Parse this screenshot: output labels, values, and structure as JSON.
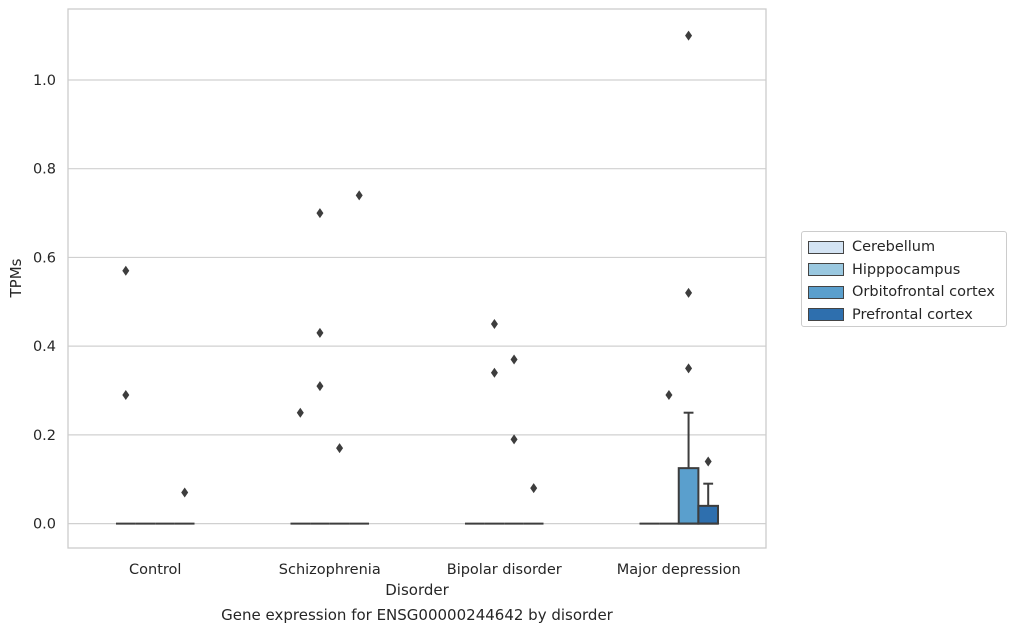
{
  "caption": "Gene expression for ENSG00000244642 by disorder",
  "chart_data": {
    "type": "box",
    "xlabel": "Disorder",
    "ylabel": "TPMs",
    "categories": [
      "Control",
      "Schizophrenia",
      "Bipolar disorder",
      "Major depression"
    ],
    "ylim": [
      -0.055,
      1.16
    ],
    "yticks": [
      0.0,
      0.2,
      0.4,
      0.6,
      0.8,
      1.0
    ],
    "ytick_labels": [
      "0.0",
      "0.2",
      "0.4",
      "0.6",
      "0.8",
      "1.0"
    ],
    "grid": true,
    "legend_position": "right",
    "series": [
      {
        "name": "Cerebellum",
        "color": "#d3e3f3",
        "boxes": [
          {
            "q1": 0,
            "median": 0,
            "q3": 0,
            "whisker_low": 0,
            "whisker_high": 0,
            "outliers": [
              0.57,
              0.29
            ]
          },
          {
            "q1": 0,
            "median": 0,
            "q3": 0,
            "whisker_low": 0,
            "whisker_high": 0,
            "outliers": [
              0.25
            ]
          },
          {
            "q1": 0,
            "median": 0,
            "q3": 0,
            "whisker_low": 0,
            "whisker_high": 0,
            "outliers": []
          },
          {
            "q1": 0,
            "median": 0,
            "q3": 0,
            "whisker_low": 0,
            "whisker_high": 0,
            "outliers": []
          }
        ]
      },
      {
        "name": "Hipppocampus",
        "color": "#9ac8e0",
        "boxes": [
          {
            "q1": 0,
            "median": 0,
            "q3": 0,
            "whisker_low": 0,
            "whisker_high": 0,
            "outliers": []
          },
          {
            "q1": 0,
            "median": 0,
            "q3": 0,
            "whisker_low": 0,
            "whisker_high": 0,
            "outliers": [
              0.7,
              0.43,
              0.31
            ]
          },
          {
            "q1": 0,
            "median": 0,
            "q3": 0,
            "whisker_low": 0,
            "whisker_high": 0,
            "outliers": [
              0.45,
              0.34
            ]
          },
          {
            "q1": 0,
            "median": 0,
            "q3": 0,
            "whisker_low": 0,
            "whisker_high": 0,
            "outliers": [
              0.29
            ]
          }
        ]
      },
      {
        "name": "Orbitofrontal cortex",
        "color": "#5a9fcd",
        "boxes": [
          {
            "q1": 0,
            "median": 0,
            "q3": 0,
            "whisker_low": 0,
            "whisker_high": 0,
            "outliers": []
          },
          {
            "q1": 0,
            "median": 0,
            "q3": 0,
            "whisker_low": 0,
            "whisker_high": 0,
            "outliers": [
              0.17
            ]
          },
          {
            "q1": 0,
            "median": 0,
            "q3": 0,
            "whisker_low": 0,
            "whisker_high": 0,
            "outliers": [
              0.37,
              0.19
            ]
          },
          {
            "q1": 0,
            "median": 0,
            "q3": 0.125,
            "whisker_low": 0,
            "whisker_high": 0.25,
            "outliers": [
              1.1,
              0.52,
              0.35
            ]
          }
        ]
      },
      {
        "name": "Prefrontal cortex",
        "color": "#2e6fae",
        "boxes": [
          {
            "q1": 0,
            "median": 0,
            "q3": 0,
            "whisker_low": 0,
            "whisker_high": 0,
            "outliers": [
              0.07
            ]
          },
          {
            "q1": 0,
            "median": 0,
            "q3": 0,
            "whisker_low": 0,
            "whisker_high": 0,
            "outliers": [
              0.74
            ]
          },
          {
            "q1": 0,
            "median": 0,
            "q3": 0,
            "whisker_low": 0,
            "whisker_high": 0,
            "outliers": [
              0.08
            ]
          },
          {
            "q1": 0,
            "median": 0,
            "q3": 0.04,
            "whisker_low": 0,
            "whisker_high": 0.09,
            "outliers": [
              0.14
            ]
          }
        ]
      }
    ]
  }
}
